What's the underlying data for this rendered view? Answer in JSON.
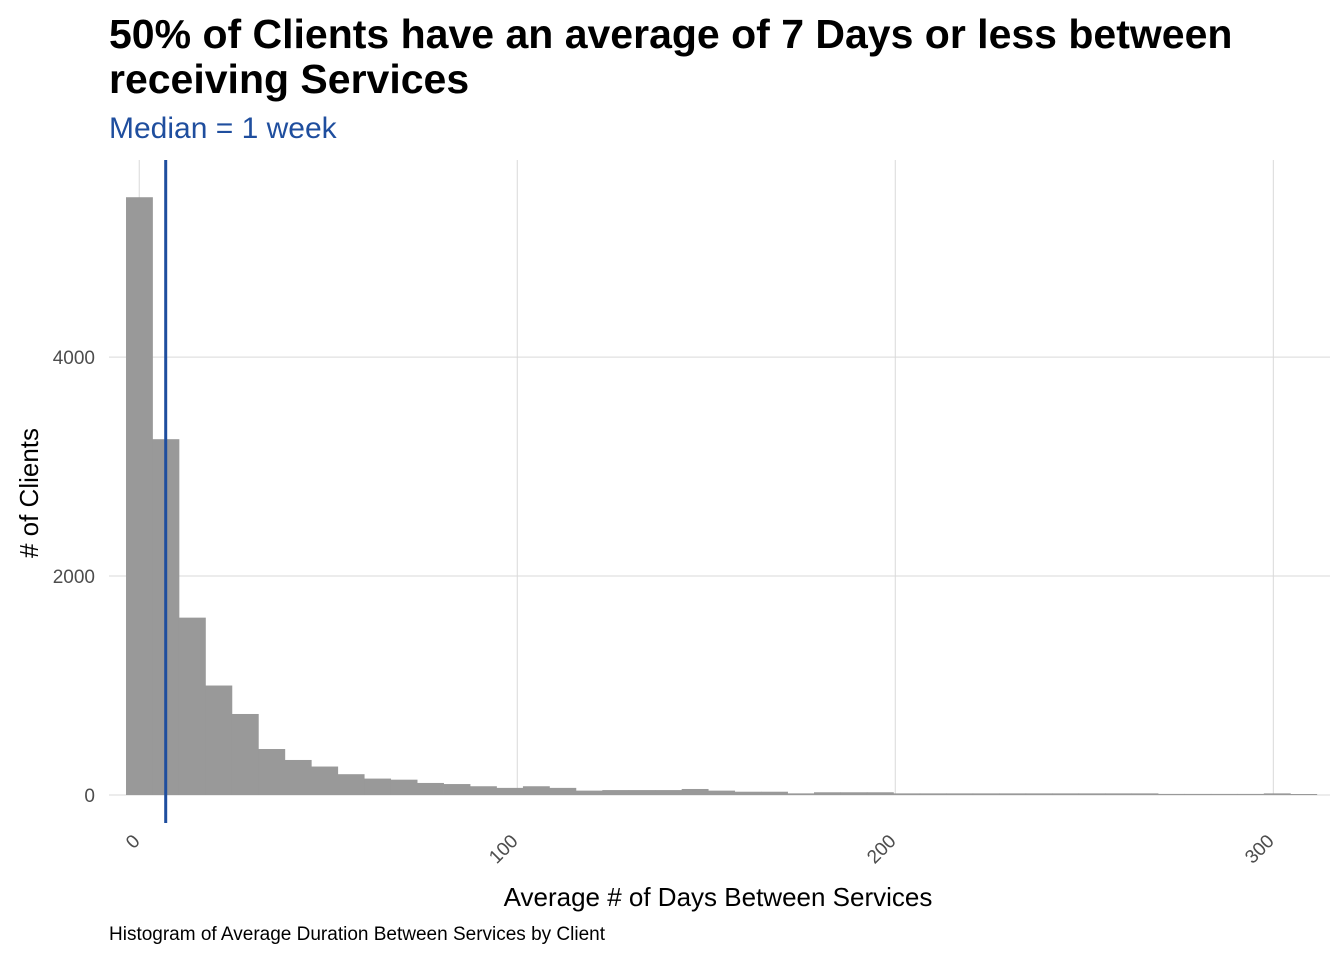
{
  "chart_data": {
    "type": "bar",
    "title": "50% of Clients have an average of 7 Days or less between receiving Services",
    "subtitle": "Median = 1 week",
    "caption": "Histogram of Average Duration Between Services by Client",
    "xlabel": "Average # of Days Between Services",
    "ylabel": "# of Clients",
    "xlim": [
      -8,
      315
    ],
    "ylim": [
      0,
      5800
    ],
    "x_ticks": [
      0,
      100,
      200,
      300
    ],
    "y_ticks": [
      0,
      2000,
      4000
    ],
    "grid": true,
    "bin_width": 7,
    "bin_starts": [
      -3.5,
      3.5,
      10.5,
      17.5,
      24.5,
      31.5,
      38.5,
      45.5,
      52.5,
      59.5,
      66.5,
      73.5,
      80.5,
      87.5,
      94.5,
      101.5,
      108.5,
      115.5,
      122.5,
      129.5,
      136.5,
      143.5,
      150.5,
      157.5,
      164.5,
      171.5,
      178.5,
      185.5,
      192.5,
      199.5,
      206.5,
      213.5,
      220.5,
      227.5,
      234.5,
      241.5,
      248.5,
      255.5,
      262.5,
      269.5,
      276.5,
      283.5,
      290.5,
      297.5,
      304.5
    ],
    "counts": [
      5460,
      3250,
      1620,
      1000,
      740,
      420,
      320,
      260,
      190,
      150,
      140,
      110,
      100,
      80,
      65,
      80,
      65,
      40,
      45,
      45,
      45,
      55,
      40,
      30,
      30,
      15,
      25,
      25,
      25,
      15,
      15,
      15,
      15,
      15,
      15,
      15,
      15,
      15,
      15,
      10,
      10,
      10,
      10,
      15,
      5
    ],
    "median": 7,
    "colors": {
      "bar": "#999999",
      "median_line": "#1f4e9e",
      "grid": "#d9d9d9",
      "subtitle": "#1f4e9e"
    }
  }
}
